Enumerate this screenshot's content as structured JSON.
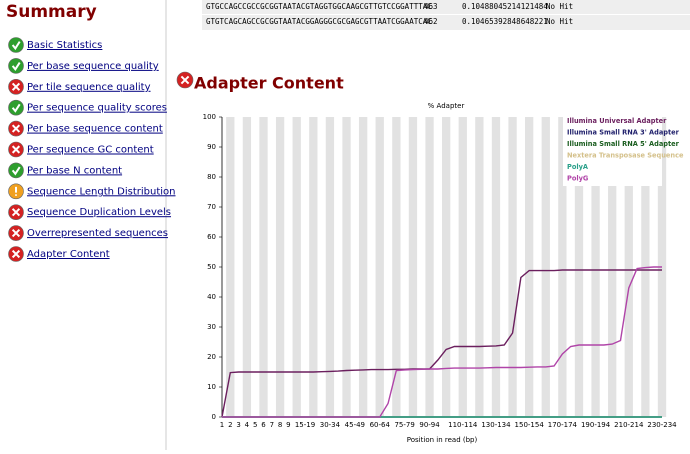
{
  "summary": {
    "title": "Summary",
    "modules": [
      {
        "name": "Basic Statistics",
        "status": "pass"
      },
      {
        "name": "Per base sequence quality",
        "status": "pass"
      },
      {
        "name": "Per tile sequence quality",
        "status": "fail"
      },
      {
        "name": "Per sequence quality scores",
        "status": "pass"
      },
      {
        "name": "Per base sequence content",
        "status": "fail"
      },
      {
        "name": "Per sequence GC content",
        "status": "fail"
      },
      {
        "name": "Per base N content",
        "status": "pass"
      },
      {
        "name": "Sequence Length Distribution",
        "status": "warn"
      },
      {
        "name": "Sequence Duplication Levels",
        "status": "fail"
      },
      {
        "name": "Overrepresented sequences",
        "status": "fail"
      },
      {
        "name": "Adapter Content",
        "status": "fail"
      }
    ]
  },
  "table": {
    "rows": [
      [
        "GTGCCAGCCGCCGCGGTAATACGTAGGTGGCAAGCGTTGTCCGGATTTAC",
        "463",
        "0.10488045214121484",
        "No Hit"
      ],
      [
        "GTGTCAGCAGCCGCGGTAATACGGAGGGCGCGAGCGTTAATCGGAATCAC",
        "462",
        "0.10465392848648221",
        "No Hit"
      ]
    ]
  },
  "section": {
    "title": "Adapter Content",
    "status": "fail"
  },
  "chart_data": {
    "type": "line",
    "title": "% Adapter",
    "x_label": "Position in read (bp)",
    "categories": [
      "1",
      "2",
      "3",
      "4",
      "5",
      "6",
      "7",
      "8",
      "9",
      null,
      "15-19",
      null,
      null,
      "30-34",
      null,
      null,
      "45-49",
      null,
      null,
      "60-64",
      null,
      null,
      "75-79",
      null,
      null,
      "90-94",
      null,
      null,
      null,
      "110-114",
      null,
      null,
      null,
      "130-134",
      null,
      null,
      null,
      "150-154",
      null,
      null,
      null,
      "170-174",
      null,
      null,
      null,
      "190-194",
      null,
      null,
      null,
      "210-214",
      null,
      null,
      null,
      "230-234"
    ],
    "ylim": [
      0,
      100
    ],
    "yticks": [
      0,
      10,
      20,
      30,
      40,
      50,
      60,
      70,
      80,
      90,
      100
    ],
    "legend": "top-right",
    "series": [
      {
        "name": "Illumina Universal Adapter",
        "color": "#6b1f5e",
        "values": [
          0,
          14.8,
          15,
          15,
          15,
          15,
          15,
          15,
          15,
          15,
          15,
          15,
          15.1,
          15.2,
          15.3,
          15.5,
          15.6,
          15.7,
          15.8,
          15.8,
          15.8,
          15.9,
          15.9,
          16,
          16,
          16,
          19,
          22.5,
          23.5,
          23.5,
          23.5,
          23.5,
          23.6,
          23.7,
          24,
          28,
          46.5,
          48.8,
          48.8,
          48.8,
          48.8,
          49,
          49,
          49,
          49,
          49,
          49,
          49,
          49,
          49,
          49,
          49,
          49,
          49
        ]
      },
      {
        "name": "Illumina Small RNA 3' Adapter",
        "color": "#1f1f6b",
        "values": [
          0,
          0,
          0,
          0,
          0,
          0,
          0,
          0,
          0,
          0,
          0,
          0,
          0,
          0,
          0,
          0,
          0,
          0,
          0,
          0,
          0,
          0,
          0,
          0,
          0,
          0,
          0,
          0,
          0,
          0,
          0,
          0,
          0,
          0,
          0,
          0,
          0,
          0,
          0,
          0,
          0,
          0,
          0,
          0,
          0,
          0,
          0,
          0,
          0,
          0,
          0,
          0,
          0,
          0
        ]
      },
      {
        "name": "Illumina Small RNA 5' Adapter",
        "color": "#1b5e20",
        "values": [
          0,
          0,
          0,
          0,
          0,
          0,
          0,
          0,
          0,
          0,
          0,
          0,
          0,
          0,
          0,
          0,
          0,
          0,
          0,
          0,
          0,
          0,
          0,
          0,
          0,
          0,
          0,
          0,
          0,
          0,
          0,
          0,
          0,
          0,
          0,
          0,
          0,
          0,
          0,
          0,
          0,
          0,
          0,
          0,
          0,
          0,
          0,
          0,
          0,
          0,
          0,
          0,
          0,
          0
        ]
      },
      {
        "name": "Nextera Transposase Sequence",
        "color": "#d4c08a",
        "values": [
          0,
          0,
          0,
          0,
          0,
          0,
          0,
          0,
          0,
          0,
          0,
          0,
          0,
          0,
          0,
          0,
          0,
          0,
          0,
          0,
          0,
          0,
          0,
          0,
          0,
          0,
          0,
          0,
          0,
          0,
          0,
          0,
          0,
          0,
          0,
          0,
          0,
          0,
          0,
          0,
          0,
          0,
          0,
          0,
          0,
          0,
          0,
          0,
          0,
          0,
          0,
          0,
          0,
          0
        ]
      },
      {
        "name": "PolyA",
        "color": "#2aa08a",
        "values": [
          0,
          0,
          0,
          0,
          0,
          0,
          0,
          0,
          0,
          0,
          0,
          0,
          0,
          0,
          0,
          0,
          0,
          0,
          0,
          0,
          0,
          0,
          0,
          0,
          0,
          0,
          0,
          0,
          0,
          0,
          0,
          0,
          0,
          0,
          0,
          0,
          0,
          0,
          0,
          0,
          0,
          0,
          0,
          0,
          0,
          0,
          0,
          0,
          0,
          0,
          0,
          0,
          0,
          0
        ]
      },
      {
        "name": "PolyG",
        "color": "#b044a8",
        "values": [
          0,
          0,
          0,
          0,
          0,
          0,
          0,
          0,
          0,
          0,
          0,
          0,
          0,
          0,
          0,
          0,
          0,
          0,
          0,
          0,
          4.5,
          15.5,
          15.7,
          15.8,
          15.9,
          16,
          16,
          16.2,
          16.3,
          16.3,
          16.3,
          16.3,
          16.4,
          16.5,
          16.5,
          16.5,
          16.5,
          16.6,
          16.7,
          16.7,
          17,
          21,
          23.5,
          24,
          24,
          24,
          24,
          24.3,
          25.5,
          43,
          49.5,
          49.8,
          50,
          50
        ]
      }
    ]
  }
}
